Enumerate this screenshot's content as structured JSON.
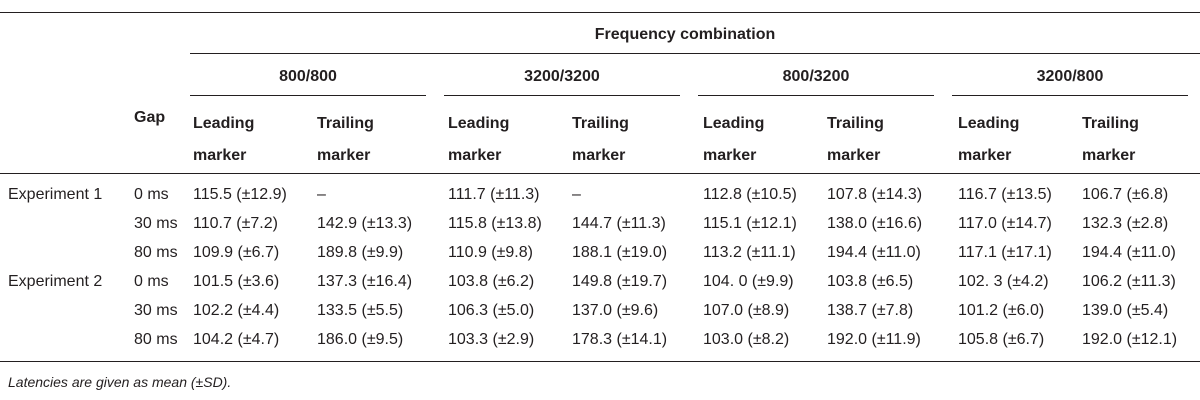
{
  "table": {
    "spanner": "Frequency combination",
    "gap_header": "Gap",
    "groups": [
      "800/800",
      "3200/3200",
      "800/3200",
      "3200/800"
    ],
    "subheaders": [
      {
        "line1": "Leading",
        "line2": "marker"
      },
      {
        "line1": "Trailing",
        "line2": "marker"
      },
      {
        "line1": "Leading",
        "line2": "marker"
      },
      {
        "line1": "Trailing",
        "line2": "marker"
      },
      {
        "line1": "Leading",
        "line2": "marker"
      },
      {
        "line1": "Trailing",
        "line2": "marker"
      },
      {
        "line1": "Leading",
        "line2": "marker"
      },
      {
        "line1": "Trailing",
        "line2": "marker"
      }
    ],
    "rows": [
      {
        "experiment": "Experiment 1",
        "gap": "0 ms",
        "cells": [
          "115.5 (±12.9)",
          "–",
          "111.7 (±11.3)",
          "–",
          "112.8 (±10.5)",
          "107.8 (±14.3)",
          "116.7 (±13.5)",
          "106.7 (±6.8)"
        ]
      },
      {
        "experiment": "",
        "gap": "30 ms",
        "cells": [
          "110.7 (±7.2)",
          "142.9 (±13.3)",
          "115.8 (±13.8)",
          "144.7 (±11.3)",
          "115.1 (±12.1)",
          "138.0 (±16.6)",
          "117.0 (±14.7)",
          "132.3 (±2.8)"
        ]
      },
      {
        "experiment": "",
        "gap": "80 ms",
        "cells": [
          "109.9 (±6.7)",
          "189.8 (±9.9)",
          "110.9 (±9.8)",
          "188.1 (±19.0)",
          "113.2 (±11.1)",
          "194.4 (±11.0)",
          "117.1 (±17.1)",
          "194.4 (±11.0)"
        ]
      },
      {
        "experiment": "Experiment 2",
        "gap": "0 ms",
        "cells": [
          "101.5 (±3.6)",
          "137.3 (±16.4)",
          "103.8 (±6.2)",
          "149.8 (±19.7)",
          "104. 0 (±9.9)",
          "103.8 (±6.5)",
          "102. 3 (±4.2)",
          "106.2 (±11.3)"
        ]
      },
      {
        "experiment": "",
        "gap": "30 ms",
        "cells": [
          "102.2 (±4.4)",
          "133.5 (±5.5)",
          "106.3 (±5.0)",
          "137.0 (±9.6)",
          "107.0 (±8.9)",
          "138.7 (±7.8)",
          "101.2 (±6.0)",
          "139.0 (±5.4)"
        ]
      },
      {
        "experiment": "",
        "gap": "80 ms",
        "cells": [
          "104.2 (±4.7)",
          "186.0 (±9.5)",
          "103.3 (±2.9)",
          "178.3 (±14.1)",
          "103.0 (±8.2)",
          "192.0 (±11.9)",
          "105.8 (±6.7)",
          "192.0 (±12.1)"
        ]
      }
    ],
    "note": "Latencies are given as mean (±SD)."
  }
}
